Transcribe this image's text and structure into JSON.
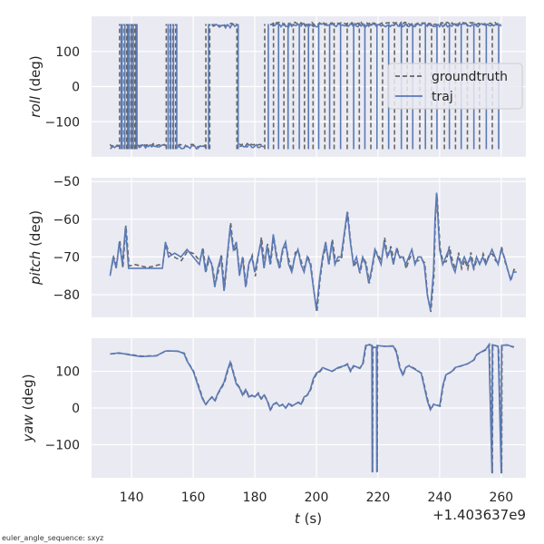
{
  "caption": "euler_angle_sequence: sxyz",
  "chart_data": {
    "type": "line",
    "x_offset_label": "+1.403637e9",
    "xlabel_var": "t",
    "xlabel_unit": " (s)",
    "xlim": [
      127,
      268
    ],
    "xticks": [
      140,
      160,
      180,
      200,
      220,
      240,
      260
    ],
    "legend": {
      "placement": "right",
      "entries": [
        "groundtruth",
        "traj"
      ]
    },
    "colors": {
      "groundtruth": "#666666",
      "traj": "#5a7ab6",
      "background": "#eaeaf2",
      "grid": "#ffffff"
    },
    "panels": [
      {
        "name": "roll",
        "ylabel_var": "roll",
        "ylabel_unit": " (deg)",
        "ylim": [
          -200,
          200
        ],
        "yticks": [
          -100,
          0,
          100
        ],
        "segments": [
          {
            "x0": 133,
            "x1": 136,
            "y": -172
          },
          {
            "x0": 136,
            "x1": 142,
            "wrap": true,
            "n": 18
          },
          {
            "x0": 142,
            "x1": 151,
            "y": -170
          },
          {
            "x0": 151,
            "x1": 155,
            "wrap": true,
            "n": 8
          },
          {
            "x0": 155,
            "x1": 164,
            "y": -172
          },
          {
            "x0": 164,
            "x1": 166,
            "wrap": true,
            "n": 3
          },
          {
            "x0": 166,
            "x1": 174,
            "y": 172
          },
          {
            "x0": 174,
            "x1": 175,
            "wrap": true,
            "n": 2
          },
          {
            "x0": 175,
            "x1": 183,
            "y": -170
          },
          {
            "x0": 183,
            "x1": 185,
            "wrap": true,
            "n": 2
          },
          {
            "x0": 185,
            "x1": 205,
            "y": 175
          },
          {
            "x0": 185,
            "x1": 205,
            "wrap": true,
            "n": 12
          },
          {
            "x0": 205,
            "x1": 260,
            "y": 175
          },
          {
            "x0": 205,
            "x1": 260,
            "wrap": true,
            "n": 28
          }
        ]
      },
      {
        "name": "pitch",
        "ylabel_var": "pitch",
        "ylabel_unit": " (deg)",
        "ylim": [
          -86,
          -49
        ],
        "yticks": [
          -80,
          -70,
          -60,
          -50
        ],
        "points": [
          [
            133,
            -75
          ],
          [
            134,
            -70
          ],
          [
            135,
            -73
          ],
          [
            136,
            -66
          ],
          [
            137,
            -72
          ],
          [
            138,
            -62
          ],
          [
            139,
            -73
          ],
          [
            141,
            -73
          ],
          [
            145,
            -73
          ],
          [
            150,
            -73
          ],
          [
            151,
            -66
          ],
          [
            152,
            -70
          ],
          [
            154,
            -69
          ],
          [
            156,
            -70
          ],
          [
            158,
            -68
          ],
          [
            160,
            -70
          ],
          [
            162,
            -72
          ],
          [
            163,
            -68
          ],
          [
            164,
            -74
          ],
          [
            165,
            -70
          ],
          [
            166,
            -72
          ],
          [
            167,
            -78
          ],
          [
            168,
            -73
          ],
          [
            169,
            -70
          ],
          [
            170,
            -79
          ],
          [
            171,
            -70
          ],
          [
            172,
            -62
          ],
          [
            173,
            -68
          ],
          [
            174,
            -66
          ],
          [
            175,
            -75
          ],
          [
            176,
            -70
          ],
          [
            177,
            -78
          ],
          [
            178,
            -72
          ],
          [
            179,
            -70
          ],
          [
            180,
            -74
          ],
          [
            181,
            -70
          ],
          [
            182,
            -66
          ],
          [
            183,
            -73
          ],
          [
            184,
            -67
          ],
          [
            185,
            -72
          ],
          [
            186,
            -64
          ],
          [
            187,
            -70
          ],
          [
            188,
            -73
          ],
          [
            189,
            -68
          ],
          [
            190,
            -66
          ],
          [
            191,
            -72
          ],
          [
            192,
            -74
          ],
          [
            193,
            -70
          ],
          [
            194,
            -68
          ],
          [
            195,
            -72
          ],
          [
            196,
            -74
          ],
          [
            197,
            -70
          ],
          [
            198,
            -72
          ],
          [
            199,
            -78
          ],
          [
            200,
            -84
          ],
          [
            201,
            -76
          ],
          [
            202,
            -70
          ],
          [
            203,
            -66
          ],
          [
            204,
            -72
          ],
          [
            205,
            -66
          ],
          [
            206,
            -72
          ],
          [
            207,
            -70
          ],
          [
            208,
            -70
          ],
          [
            209,
            -64
          ],
          [
            210,
            -58
          ],
          [
            211,
            -66
          ],
          [
            212,
            -72
          ],
          [
            213,
            -70
          ],
          [
            214,
            -74
          ],
          [
            215,
            -70
          ],
          [
            216,
            -72
          ],
          [
            217,
            -77
          ],
          [
            218,
            -73
          ],
          [
            219,
            -68
          ],
          [
            220,
            -70
          ],
          [
            221,
            -72
          ],
          [
            222,
            -66
          ],
          [
            223,
            -70
          ],
          [
            224,
            -68
          ],
          [
            225,
            -72
          ],
          [
            226,
            -68
          ],
          [
            227,
            -70
          ],
          [
            228,
            -70
          ],
          [
            229,
            -72
          ],
          [
            230,
            -70
          ],
          [
            231,
            -68
          ],
          [
            232,
            -72
          ],
          [
            233,
            -70
          ],
          [
            234,
            -70
          ],
          [
            235,
            -72
          ],
          [
            236,
            -80
          ],
          [
            237,
            -84
          ],
          [
            238,
            -74
          ],
          [
            238.5,
            -60
          ],
          [
            239,
            -53
          ],
          [
            240,
            -68
          ],
          [
            241,
            -72
          ],
          [
            242,
            -70
          ],
          [
            243,
            -68
          ],
          [
            244,
            -72
          ],
          [
            245,
            -74
          ],
          [
            246,
            -70
          ],
          [
            247,
            -72
          ],
          [
            248,
            -70
          ],
          [
            249,
            -72
          ],
          [
            250,
            -70
          ],
          [
            251,
            -73
          ],
          [
            252,
            -70
          ],
          [
            253,
            -72
          ],
          [
            254,
            -70
          ],
          [
            255,
            -72
          ],
          [
            256,
            -70
          ],
          [
            257,
            -68
          ],
          [
            258,
            -70
          ],
          [
            259,
            -72
          ],
          [
            260,
            -68
          ],
          [
            261,
            -70
          ],
          [
            262,
            -73
          ],
          [
            263,
            -76
          ],
          [
            264,
            -74
          ],
          [
            265,
            -74
          ]
        ]
      },
      {
        "name": "yaw",
        "ylabel_var": "yaw",
        "ylabel_unit": " (deg)",
        "ylim": [
          -190,
          190
        ],
        "yticks": [
          -100,
          0,
          100
        ],
        "points": [
          [
            133,
            147
          ],
          [
            136,
            150
          ],
          [
            139,
            145
          ],
          [
            143,
            140
          ],
          [
            148,
            142
          ],
          [
            151,
            155
          ],
          [
            155,
            155
          ],
          [
            157,
            148
          ],
          [
            158,
            128
          ],
          [
            160,
            100
          ],
          [
            162,
            50
          ],
          [
            163,
            25
          ],
          [
            164,
            10
          ],
          [
            165,
            20
          ],
          [
            166,
            30
          ],
          [
            167,
            20
          ],
          [
            168,
            40
          ],
          [
            169,
            55
          ],
          [
            170,
            70
          ],
          [
            171,
            100
          ],
          [
            172,
            125
          ],
          [
            173,
            95
          ],
          [
            174,
            65
          ],
          [
            175,
            55
          ],
          [
            176,
            35
          ],
          [
            177,
            50
          ],
          [
            178,
            30
          ],
          [
            179,
            35
          ],
          [
            180,
            30
          ],
          [
            181,
            40
          ],
          [
            182,
            25
          ],
          [
            183,
            35
          ],
          [
            184,
            20
          ],
          [
            185,
            -5
          ],
          [
            186,
            10
          ],
          [
            187,
            15
          ],
          [
            188,
            5
          ],
          [
            189,
            10
          ],
          [
            190,
            0
          ],
          [
            191,
            12
          ],
          [
            192,
            5
          ],
          [
            193,
            10
          ],
          [
            194,
            15
          ],
          [
            195,
            10
          ],
          [
            196,
            30
          ],
          [
            197,
            35
          ],
          [
            198,
            50
          ],
          [
            199,
            80
          ],
          [
            200,
            95
          ],
          [
            201,
            100
          ],
          [
            202,
            110
          ],
          [
            205,
            100
          ],
          [
            207,
            110
          ],
          [
            209,
            115
          ],
          [
            210,
            120
          ],
          [
            211,
            100
          ],
          [
            212,
            115
          ],
          [
            213,
            112
          ],
          [
            214,
            108
          ],
          [
            215,
            120
          ],
          [
            216,
            170
          ],
          [
            217,
            172
          ],
          [
            218,
            170
          ],
          [
            218.1,
            -175
          ],
          [
            218.2,
            165
          ],
          [
            219.5,
            165
          ],
          [
            219.6,
            -175
          ],
          [
            219.7,
            170
          ],
          [
            222,
            168
          ],
          [
            225,
            168
          ],
          [
            226,
            150
          ],
          [
            227,
            110
          ],
          [
            228,
            90
          ],
          [
            229,
            110
          ],
          [
            230,
            115
          ],
          [
            232,
            105
          ],
          [
            234,
            95
          ],
          [
            236,
            20
          ],
          [
            237,
            -5
          ],
          [
            238,
            10
          ],
          [
            240,
            5
          ],
          [
            241,
            60
          ],
          [
            242,
            90
          ],
          [
            244,
            100
          ],
          [
            245,
            110
          ],
          [
            247,
            115
          ],
          [
            249,
            120
          ],
          [
            251,
            130
          ],
          [
            252,
            145
          ],
          [
            253,
            150
          ],
          [
            255,
            160
          ],
          [
            256,
            172
          ],
          [
            257,
            -178
          ],
          [
            257.1,
            172
          ],
          [
            259,
            168
          ],
          [
            260,
            -178
          ],
          [
            260.1,
            170
          ],
          [
            262,
            172
          ],
          [
            264,
            165
          ]
        ]
      }
    ]
  }
}
